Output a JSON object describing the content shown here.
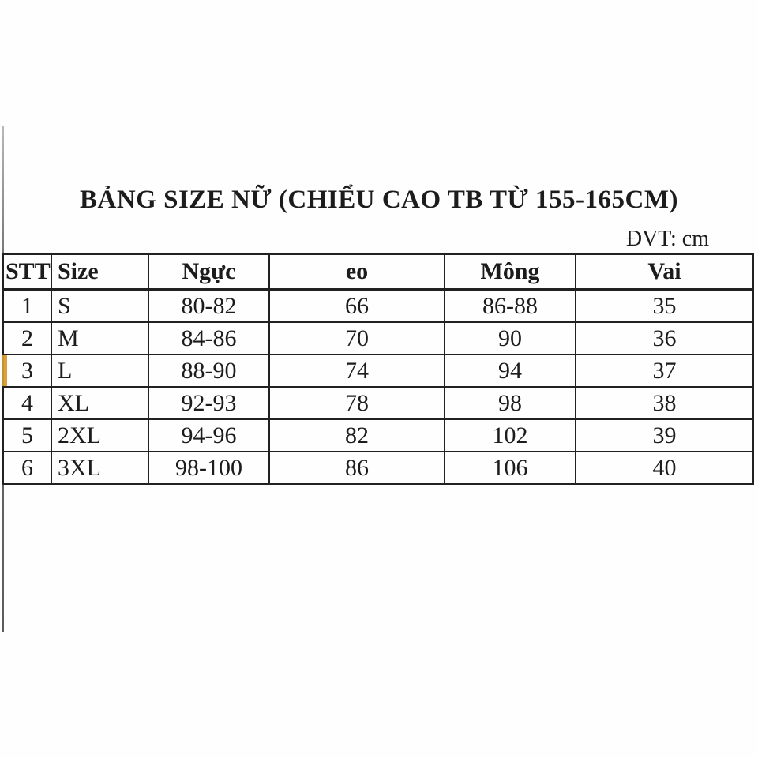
{
  "title": "BẢNG SIZE NỮ (CHIỂU CAO TB TỪ 155-165CM)",
  "unit_label": "ĐVT: cm",
  "table": {
    "headers": [
      "STT",
      "Size",
      "Ngực",
      "eo",
      "Mông",
      "Vai"
    ],
    "rows": [
      [
        "1",
        "S",
        "80-82",
        "66",
        "86-88",
        "35"
      ],
      [
        "2",
        "M",
        "84-86",
        "70",
        "90",
        "36"
      ],
      [
        "3",
        "L",
        "88-90",
        "74",
        "94",
        "37"
      ],
      [
        "4",
        "XL",
        "92-93",
        "78",
        "98",
        "38"
      ],
      [
        "5",
        "2XL",
        "94-96",
        "82",
        "102",
        "39"
      ],
      [
        "6",
        "3XL",
        "98-100",
        "86",
        "106",
        "40"
      ]
    ],
    "highlighted_row_index": 2
  },
  "colors": {
    "border": "#212121",
    "text": "#1c1c1c",
    "accent_row_marker": "#d9a33b",
    "photo_edge": "#6a6a6a",
    "background": "#fefefe"
  }
}
